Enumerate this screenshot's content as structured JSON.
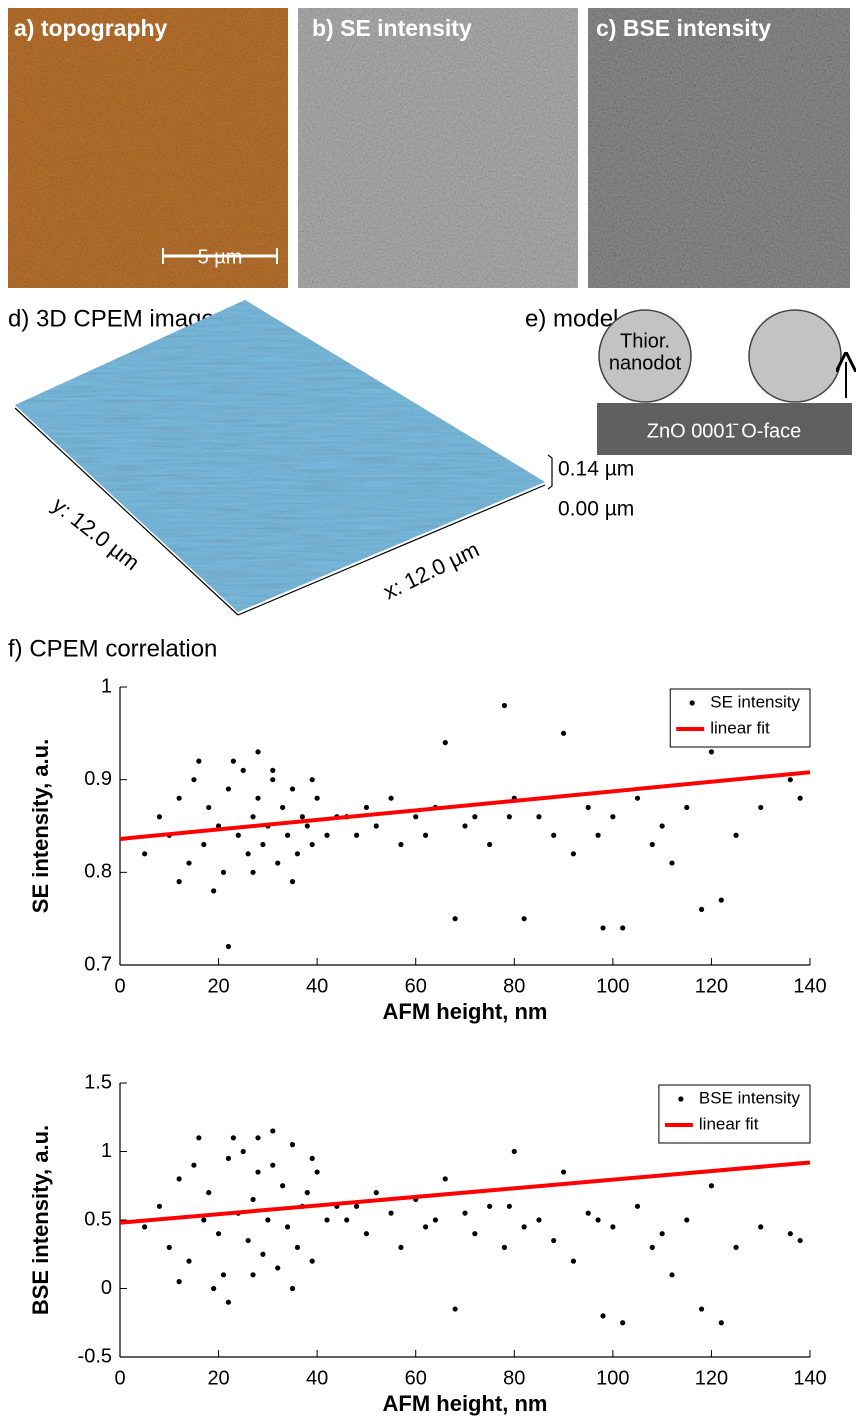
{
  "images": [
    {
      "label": "a) topography",
      "scale_bar": "5 µm"
    },
    {
      "label": "b) SE intensity"
    },
    {
      "label": "c) BSE intensity"
    }
  ],
  "surface": {
    "label": "d) 3D CPEM image",
    "z_top": "0.14 µm",
    "z_bottom": "0.00 µm",
    "y_extent": "y: 12.0 µm",
    "x_extent": "x: 12.0 µm"
  },
  "model": {
    "label": "e) model",
    "nanodot": [
      "Thior.",
      "nanodot"
    ],
    "substrate": "ZnO 0001̄ O-face"
  },
  "correlation_label": "f) CPEM correlation",
  "chart_data": [
    {
      "type": "scatter",
      "xlabel": "AFM height, nm",
      "ylabel": "SE intensity, a.u.",
      "xlim": [
        0,
        140
      ],
      "ylim": [
        0.7,
        1
      ],
      "xticks": [
        0,
        20,
        40,
        60,
        80,
        100,
        120,
        140
      ],
      "yticks": [
        0.7,
        0.8,
        0.9,
        1
      ],
      "legend": "upper right",
      "series": [
        {
          "name": "SE intensity",
          "color": "#000000",
          "mode": "markers",
          "x": [
            5,
            8,
            10,
            12,
            14,
            15,
            17,
            18,
            20,
            21,
            22,
            24,
            25,
            26,
            27,
            28,
            29,
            30,
            31,
            32,
            33,
            34,
            35,
            36,
            37,
            38,
            39,
            40,
            42,
            44,
            12,
            16,
            19,
            23,
            27,
            31,
            35,
            39,
            22,
            28,
            46,
            48,
            50,
            52,
            55,
            57,
            60,
            62,
            64,
            66,
            68,
            70,
            72,
            75,
            78,
            80,
            82,
            85,
            88,
            90,
            92,
            95,
            98,
            100,
            102,
            105,
            108,
            110,
            112,
            115,
            118,
            120,
            125,
            130,
            136,
            138,
            97,
            79,
            122
          ],
          "values": [
            0.82,
            0.86,
            0.84,
            0.88,
            0.81,
            0.9,
            0.83,
            0.87,
            0.85,
            0.8,
            0.89,
            0.84,
            0.91,
            0.82,
            0.86,
            0.88,
            0.83,
            0.85,
            0.9,
            0.81,
            0.87,
            0.84,
            0.89,
            0.82,
            0.86,
            0.85,
            0.83,
            0.88,
            0.84,
            0.86,
            0.79,
            0.92,
            0.78,
            0.92,
            0.8,
            0.91,
            0.79,
            0.9,
            0.72,
            0.93,
            0.86,
            0.84,
            0.87,
            0.85,
            0.88,
            0.83,
            0.86,
            0.84,
            0.87,
            0.94,
            0.75,
            0.85,
            0.86,
            0.83,
            0.98,
            0.88,
            0.75,
            0.86,
            0.84,
            0.95,
            0.82,
            0.87,
            0.74,
            0.86,
            0.74,
            0.88,
            0.83,
            0.85,
            0.81,
            0.87,
            0.76,
            0.93,
            0.84,
            0.87,
            0.9,
            0.88,
            0.84,
            0.86,
            0.77
          ]
        },
        {
          "name": "linear fit",
          "color": "#ff0000",
          "mode": "line",
          "x": [
            0,
            140
          ],
          "values": [
            0.836,
            0.908
          ]
        }
      ]
    },
    {
      "type": "scatter",
      "xlabel": "AFM height, nm",
      "ylabel": "BSE intensity, a.u.",
      "xlim": [
        0,
        140
      ],
      "ylim": [
        -0.5,
        1.5
      ],
      "xticks": [
        0,
        20,
        40,
        60,
        80,
        100,
        120,
        140
      ],
      "yticks": [
        -0.5,
        0,
        0.5,
        1,
        1.5
      ],
      "legend": "upper right",
      "series": [
        {
          "name": "BSE intensity",
          "color": "#000000",
          "mode": "markers",
          "x": [
            5,
            8,
            10,
            12,
            14,
            15,
            17,
            18,
            20,
            21,
            22,
            24,
            25,
            26,
            27,
            28,
            29,
            30,
            31,
            32,
            33,
            34,
            35,
            36,
            37,
            38,
            39,
            40,
            42,
            44,
            12,
            16,
            19,
            23,
            27,
            31,
            35,
            39,
            22,
            28,
            46,
            48,
            50,
            52,
            55,
            57,
            60,
            62,
            64,
            66,
            68,
            70,
            72,
            75,
            78,
            80,
            82,
            85,
            88,
            90,
            92,
            95,
            98,
            100,
            102,
            105,
            108,
            110,
            112,
            115,
            118,
            120,
            125,
            130,
            136,
            138,
            97,
            79,
            122
          ],
          "values": [
            0.45,
            0.6,
            0.3,
            0.8,
            0.2,
            0.9,
            0.5,
            0.7,
            0.4,
            0.1,
            0.95,
            0.55,
            1.0,
            0.35,
            0.65,
            0.85,
            0.25,
            0.5,
            0.9,
            0.15,
            0.75,
            0.45,
            1.05,
            0.3,
            0.6,
            0.7,
            0.2,
            0.85,
            0.5,
            0.6,
            0.05,
            1.1,
            0,
            1.1,
            0.1,
            1.15,
            0,
            0.95,
            -0.1,
            1.1,
            0.5,
            0.6,
            0.4,
            0.7,
            0.55,
            0.3,
            0.65,
            0.45,
            0.5,
            0.8,
            -0.15,
            0.55,
            0.4,
            0.6,
            0.3,
            1.0,
            0.45,
            0.5,
            0.35,
            0.85,
            0.2,
            0.55,
            -0.2,
            0.45,
            -0.25,
            0.6,
            0.3,
            0.4,
            0.1,
            0.5,
            -0.15,
            0.75,
            0.3,
            0.45,
            0.4,
            0.35,
            0.5,
            0.6,
            -0.25
          ]
        },
        {
          "name": "linear fit",
          "color": "#ff0000",
          "mode": "line",
          "x": [
            0,
            140
          ],
          "values": [
            0.48,
            0.92
          ]
        }
      ]
    }
  ]
}
